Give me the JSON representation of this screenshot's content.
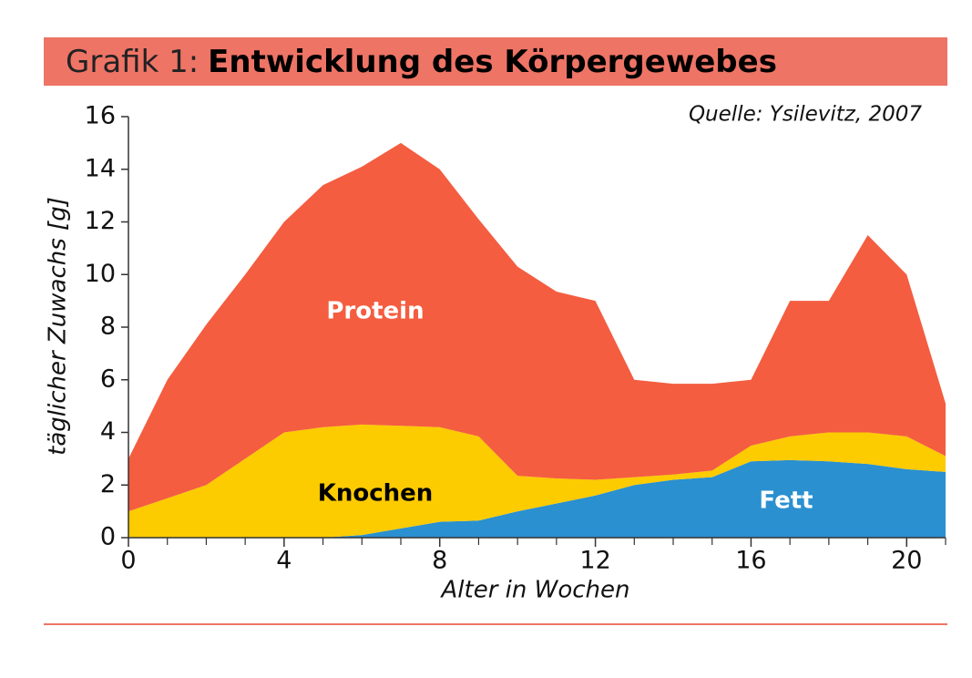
{
  "chart_data": {
    "type": "stacked_area",
    "title_label": "Grafik 1:",
    "title": "Entwicklung des Körpergewebes",
    "source": "Quelle: Ysilevitz, 2007",
    "x_label": "Alter in Wochen",
    "y_label": "täglicher Zuwachs [g]",
    "x": [
      0,
      1,
      2,
      3,
      4,
      5,
      6,
      7,
      8,
      9,
      10,
      11,
      12,
      13,
      14,
      15,
      16,
      17,
      18,
      19,
      20,
      21
    ],
    "series": [
      {
        "name": "Fett",
        "color": "#2a90d0",
        "values": [
          0,
          0,
          0,
          0,
          0,
          0,
          0.1,
          0.35,
          0.6,
          0.65,
          1.0,
          1.3,
          1.6,
          2.0,
          2.2,
          2.3,
          2.9,
          2.95,
          2.9,
          2.8,
          2.6,
          2.5
        ]
      },
      {
        "name": "Knochen",
        "color": "#fccb00",
        "values": [
          1.0,
          1.5,
          2.0,
          3.0,
          4.0,
          4.2,
          4.2,
          3.9,
          3.6,
          3.2,
          1.35,
          0.95,
          0.6,
          0.3,
          0.2,
          0.25,
          0.6,
          0.9,
          1.1,
          1.2,
          1.25,
          0.6
        ]
      },
      {
        "name": "Protein",
        "color": "#f45d40",
        "values": [
          2.0,
          4.5,
          6.1,
          7.0,
          8.0,
          9.2,
          9.8,
          10.75,
          9.8,
          8.25,
          7.95,
          7.1,
          6.8,
          3.7,
          3.45,
          3.3,
          2.5,
          5.15,
          5.0,
          7.5,
          6.15,
          2.0
        ]
      }
    ],
    "xlim": [
      0,
      21
    ],
    "ylim": [
      0,
      16
    ],
    "xticks": [
      0,
      4,
      8,
      12,
      16,
      20
    ],
    "xminorticks": [
      1,
      2,
      3,
      5,
      6,
      7,
      9,
      10,
      11,
      13,
      14,
      15,
      17,
      18,
      19,
      21
    ],
    "yticks": [
      0,
      2,
      4,
      6,
      8,
      10,
      12,
      14,
      16
    ]
  }
}
